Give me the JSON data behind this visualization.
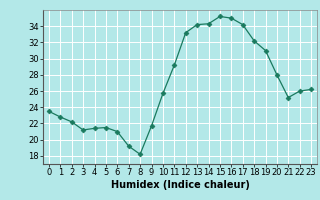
{
  "x": [
    0,
    1,
    2,
    3,
    4,
    5,
    6,
    7,
    8,
    9,
    10,
    11,
    12,
    13,
    14,
    15,
    16,
    17,
    18,
    19,
    20,
    21,
    22,
    23
  ],
  "y": [
    23.5,
    22.8,
    22.2,
    21.2,
    21.4,
    21.5,
    21.0,
    19.2,
    18.2,
    21.7,
    25.7,
    29.2,
    33.2,
    34.2,
    34.3,
    35.2,
    35.0,
    34.2,
    32.2,
    31.0,
    28.0,
    25.2,
    26.0,
    26.2
  ],
  "xlabel": "Humidex (Indice chaleur)",
  "xlim": [
    -0.5,
    23.5
  ],
  "ylim": [
    17,
    36
  ],
  "yticks": [
    18,
    20,
    22,
    24,
    26,
    28,
    30,
    32,
    34
  ],
  "xticks": [
    0,
    1,
    2,
    3,
    4,
    5,
    6,
    7,
    8,
    9,
    10,
    11,
    12,
    13,
    14,
    15,
    16,
    17,
    18,
    19,
    20,
    21,
    22,
    23
  ],
  "xtick_labels": [
    "0",
    "1",
    "2",
    "3",
    "4",
    "5",
    "6",
    "7",
    "8",
    "9",
    "10",
    "11",
    "12",
    "13",
    "14",
    "15",
    "16",
    "17",
    "18",
    "19",
    "20",
    "21",
    "22",
    "23"
  ],
  "line_color": "#1a7a5e",
  "marker_size": 2.5,
  "bg_color": "#b3e8e8",
  "grid_color": "#ffffff",
  "label_fontsize": 7,
  "tick_fontsize": 6
}
